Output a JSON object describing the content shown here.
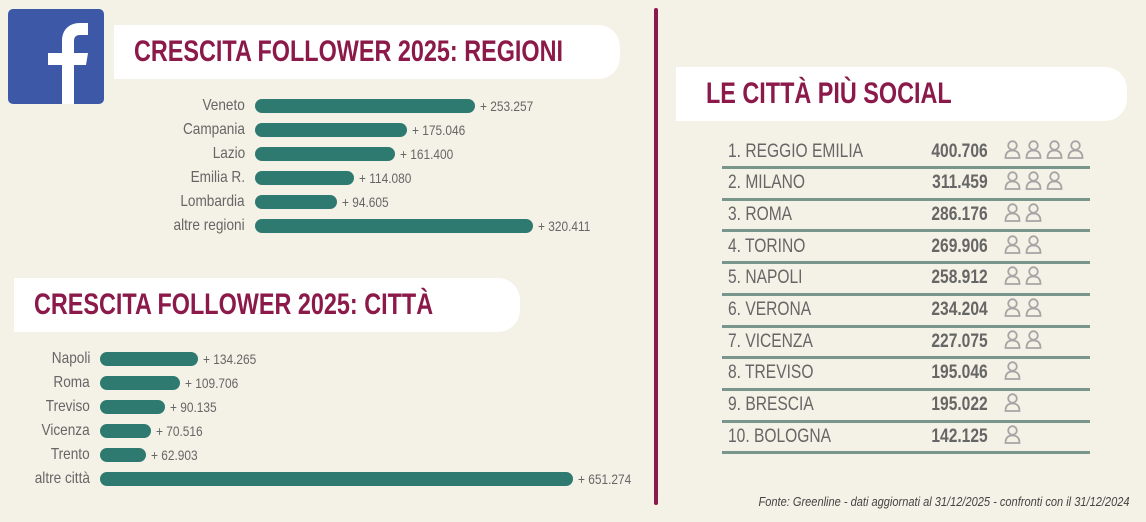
{
  "colors": {
    "accent": "#8b1a4a",
    "bar": "#2e7a70",
    "facebook": "#3c58a6"
  },
  "logo": {
    "icon": "facebook-icon",
    "text": "f"
  },
  "chart_data": [
    {
      "type": "bar",
      "orientation": "horizontal",
      "title": "CRESCITA FOLLOWER 2025: REGIONI",
      "categories": [
        "Veneto",
        "Campania",
        "Lazio",
        "Emilia R.",
        "Lombardia",
        "altre regioni"
      ],
      "values": [
        253257,
        175046,
        161400,
        114080,
        94605,
        320411
      ],
      "labels": [
        "+ 253.257",
        "+ 175.046",
        "+ 161.400",
        "+ 114.080",
        "+ 94.605",
        "+ 320.411"
      ]
    },
    {
      "type": "bar",
      "orientation": "horizontal",
      "title": "CRESCITA FOLLOWER 2025: CITTÀ",
      "categories": [
        "Napoli",
        "Roma",
        "Treviso",
        "Vicenza",
        "Trento",
        "altre città"
      ],
      "values": [
        134265,
        109706,
        90135,
        70516,
        62903,
        651274
      ],
      "labels": [
        "+ 134.265",
        "+ 109.706",
        "+ 90.135",
        "+ 70.516",
        "+ 62.903",
        "+ 651.274"
      ]
    },
    {
      "type": "table",
      "title": "LE CITTÀ PIÙ SOCIAL",
      "rows": [
        {
          "name": "1. REGGIO EMILIA",
          "value": "400.706",
          "icons": 4
        },
        {
          "name": "2. MILANO",
          "value": "311.459",
          "icons": 3
        },
        {
          "name": "3. ROMA",
          "value": "286.176",
          "icons": 2
        },
        {
          "name": "4. TORINO",
          "value": "269.906",
          "icons": 2
        },
        {
          "name": "5. NAPOLI",
          "value": "258.912",
          "icons": 2
        },
        {
          "name": "6. VERONA",
          "value": "234.204",
          "icons": 2
        },
        {
          "name": "7. VICENZA",
          "value": "227.075",
          "icons": 2
        },
        {
          "name": "8. TREVISO",
          "value": "195.046",
          "icons": 1
        },
        {
          "name": "9. BRESCIA",
          "value": "195.022",
          "icons": 1
        },
        {
          "name": "10. BOLOGNA",
          "value": "142.125",
          "icons": 1
        }
      ]
    }
  ],
  "footer": "Fonte: Greenline - dati aggiornati al 31/12/2025 - confronti con il 31/12/2024"
}
